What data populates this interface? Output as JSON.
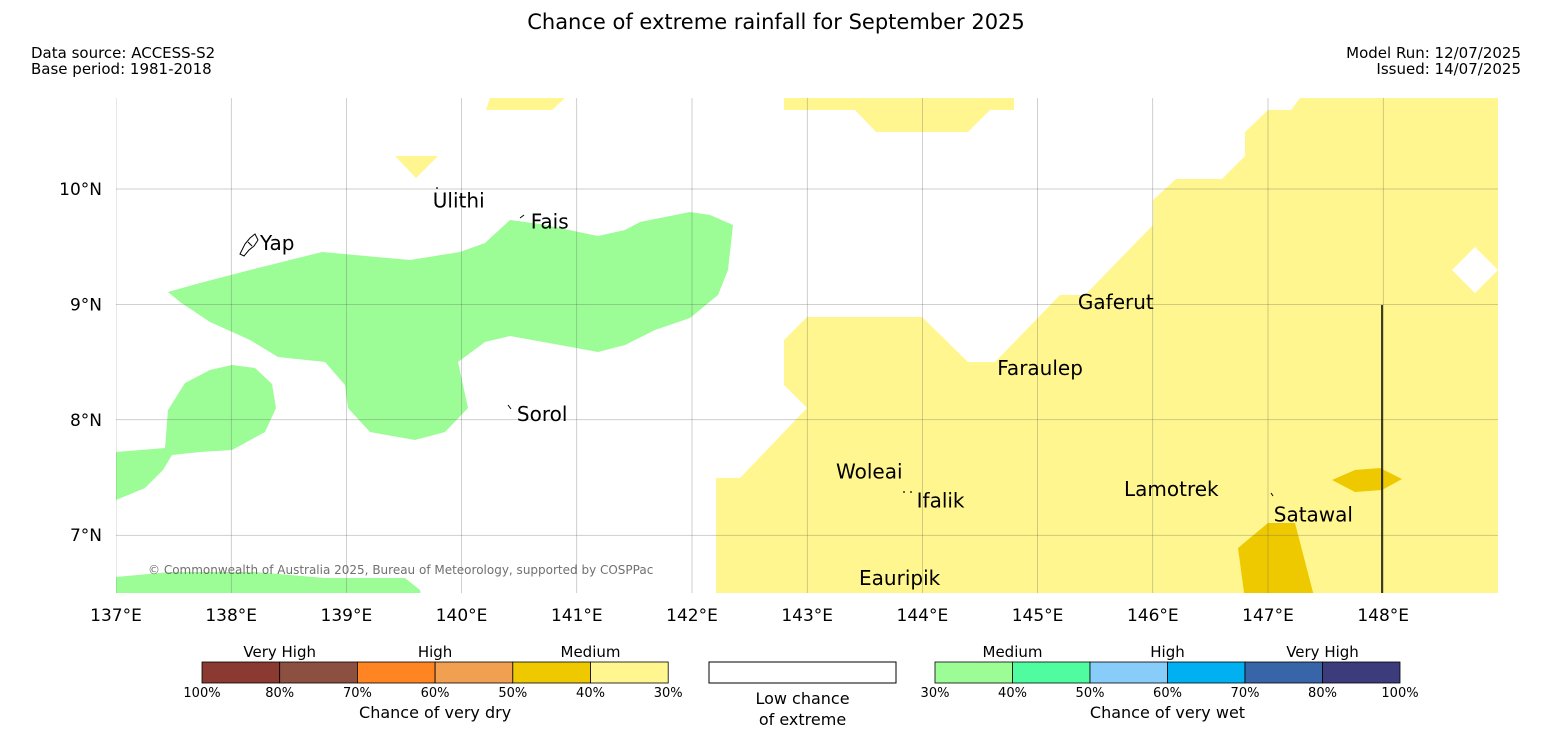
{
  "title": "Chance of extreme rainfall for September 2025",
  "meta_left": {
    "source": "Data source: ACCESS-S2",
    "base": "Base period: 1981-2018"
  },
  "meta_right": {
    "run": "Model Run: 12/07/2025",
    "issued": "Issued: 14/07/2025"
  },
  "map": {
    "lon_range": [
      137,
      149
    ],
    "lat_range": [
      6.5,
      10.8
    ],
    "lon_ticks": [
      {
        "value": 137,
        "label": "137°E"
      },
      {
        "value": 138,
        "label": "138°E"
      },
      {
        "value": 139,
        "label": "139°E"
      },
      {
        "value": 140,
        "label": "140°E"
      },
      {
        "value": 141,
        "label": "141°E"
      },
      {
        "value": 142,
        "label": "142°E"
      },
      {
        "value": 143,
        "label": "143°E"
      },
      {
        "value": 144,
        "label": "144°E"
      },
      {
        "value": 145,
        "label": "145°E"
      },
      {
        "value": 146,
        "label": "146°E"
      },
      {
        "value": 147,
        "label": "147°E"
      },
      {
        "value": 148,
        "label": "148°E"
      }
    ],
    "lat_ticks": [
      {
        "value": 10,
        "label": "10°N"
      },
      {
        "value": 9,
        "label": "9°N"
      },
      {
        "value": 8,
        "label": "8°N"
      },
      {
        "value": 7,
        "label": "7°N"
      }
    ],
    "grid": true,
    "copyright": "© Commonwealth of Australia 2025, Bureau of Meteorology, supported by COSPPac",
    "places": [
      {
        "name": "Ulithi",
        "lon": 139.75,
        "lat": 9.9
      },
      {
        "name": "Fais",
        "lon": 140.6,
        "lat": 9.72
      },
      {
        "name": "Yap",
        "lon": 138.25,
        "lat": 9.53
      },
      {
        "name": "Gaferut",
        "lon": 145.35,
        "lat": 9.02
      },
      {
        "name": "Faraulep",
        "lon": 144.65,
        "lat": 8.45
      },
      {
        "name": "Sorol",
        "lon": 140.48,
        "lat": 8.05
      },
      {
        "name": "Woleai",
        "lon": 143.25,
        "lat": 7.55
      },
      {
        "name": "Ifalik",
        "lon": 143.95,
        "lat": 7.3
      },
      {
        "name": "Lamotrek",
        "lon": 145.75,
        "lat": 7.4
      },
      {
        "name": "Satawal",
        "lon": 147.05,
        "lat": 7.18
      },
      {
        "name": "Eauripik",
        "lon": 143.45,
        "lat": 6.63
      }
    ],
    "colors": {
      "dry_40_30": "#fff68f",
      "dry_50_40": "#eec900",
      "wet_30_40": "#9cfc96",
      "land": "#000000"
    }
  },
  "legend": {
    "dry": {
      "title": "Chance of very dry",
      "categories": [
        "Very High",
        "High",
        "Medium"
      ],
      "ticks": [
        "100%",
        "80%",
        "70%",
        "60%",
        "50%",
        "40%",
        "30%"
      ],
      "colors": [
        "#8b3a32",
        "#8b5040",
        "#ff8422",
        "#f0a050",
        "#eec900",
        "#fff68f"
      ]
    },
    "low": {
      "line1": "Low chance",
      "line2": "of extreme"
    },
    "wet": {
      "title": "Chance of very wet",
      "categories": [
        "Medium",
        "High",
        "Very High"
      ],
      "ticks": [
        "30%",
        "40%",
        "50%",
        "60%",
        "70%",
        "80%",
        "100%"
      ],
      "colors": [
        "#9cfc96",
        "#50fca0",
        "#88ccfa",
        "#00b0f0",
        "#3864a8",
        "#3c3c7c"
      ]
    }
  }
}
